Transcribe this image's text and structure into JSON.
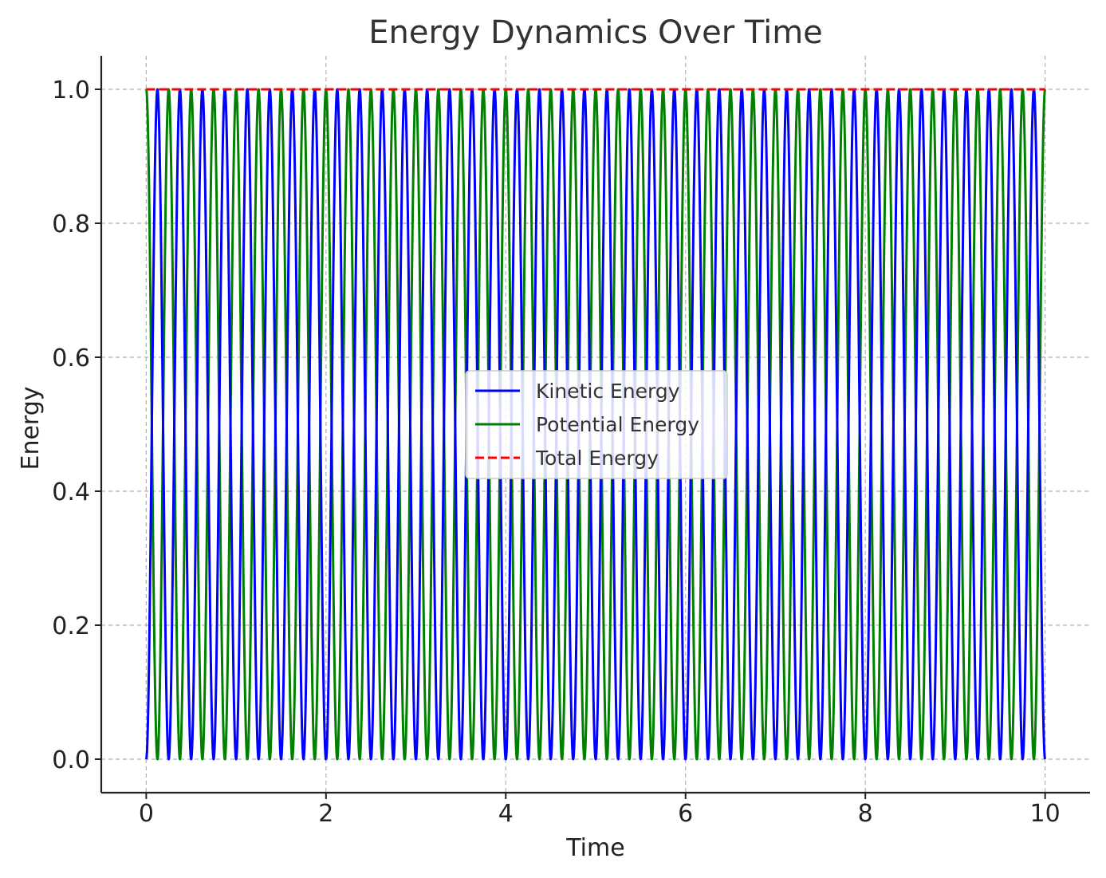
{
  "chart_data": {
    "type": "line",
    "title": "Energy Dynamics Over Time",
    "xlabel": "Time",
    "ylabel": "Energy",
    "xlim": [
      -0.5,
      10.5
    ],
    "ylim": [
      -0.05,
      1.05
    ],
    "xticks": [
      0,
      2,
      4,
      6,
      8,
      10
    ],
    "xtick_labels": [
      "0",
      "2",
      "4",
      "6",
      "8",
      "10"
    ],
    "yticks": [
      0.0,
      0.2,
      0.4,
      0.6,
      0.8,
      1.0
    ],
    "ytick_labels": [
      "0.0",
      "0.2",
      "0.4",
      "0.6",
      "0.8",
      "1.0"
    ],
    "grid": true,
    "legend_position": "center",
    "x_range": [
      0,
      10
    ],
    "series": [
      {
        "name": "Kinetic Energy",
        "color": "#0000ff",
        "style": "solid",
        "function": "sin^2(2*pi*f*t)",
        "frequency": 2,
        "sample_points": [
          [
            0,
            0.0
          ],
          [
            0.125,
            1.0
          ],
          [
            0.25,
            0.0
          ],
          [
            0.375,
            1.0
          ],
          [
            0.5,
            0.0
          ],
          [
            10,
            0.0
          ]
        ]
      },
      {
        "name": "Potential Energy",
        "color": "#008000",
        "style": "solid",
        "function": "cos^2(2*pi*f*t)",
        "frequency": 2,
        "sample_points": [
          [
            0,
            1.0
          ],
          [
            0.125,
            0.0
          ],
          [
            0.25,
            1.0
          ],
          [
            0.375,
            0.0
          ],
          [
            0.5,
            1.0
          ],
          [
            10,
            1.0
          ]
        ]
      },
      {
        "name": "Total Energy",
        "color": "#ff0000",
        "style": "dashed",
        "function": "constant",
        "sample_points": [
          [
            0,
            1.0
          ],
          [
            10,
            1.0
          ]
        ]
      }
    ]
  }
}
